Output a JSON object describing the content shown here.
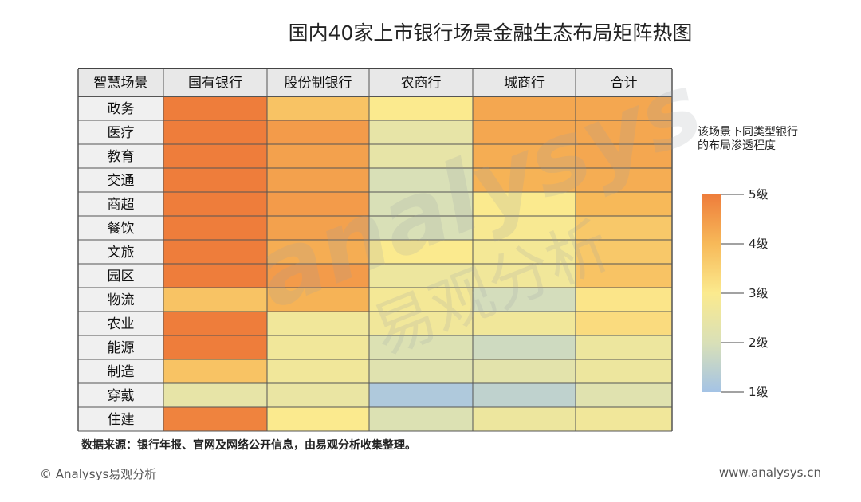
{
  "title": "国内40家上市银行场景金融生态布局矩阵热图",
  "source_note": "数据来源：银行年报、官网及网络公开信息，由易观分析收集整理。",
  "footer": {
    "copyright": "© Analysys易观分析",
    "website": "www.analysys.cn"
  },
  "legend": {
    "title": "该场景下同类型银行的布局渗透程度",
    "ticks": [
      "5级",
      "4级",
      "3级",
      "2级",
      "1级"
    ],
    "tick_values": [
      5,
      4,
      3,
      2,
      1
    ],
    "colors": [
      "#ee7d3b",
      "#f7b959",
      "#fbea8e",
      "#d9e0b7",
      "#a4c3e5"
    ]
  },
  "watermark": {
    "latin": "analysys",
    "chinese": "易观分析"
  },
  "chart_data": {
    "type": "heatmap",
    "title": "国内40家上市银行场景金融生态布局矩阵热图",
    "header_label": "智慧场景",
    "columns": [
      "国有银行",
      "股份制银行",
      "农商行",
      "城商行",
      "合计"
    ],
    "rows": [
      "政务",
      "医疗",
      "教育",
      "交通",
      "商超",
      "餐饮",
      "文旅",
      "园区",
      "物流",
      "农业",
      "能源",
      "制造",
      "穿戴",
      "住建"
    ],
    "scale": {
      "min": 1,
      "max": 5,
      "unit": "级"
    },
    "values": [
      [
        5.0,
        3.8,
        3.0,
        4.3,
        4.3
      ],
      [
        5.0,
        4.5,
        2.4,
        4.3,
        4.3
      ],
      [
        5.0,
        4.4,
        2.4,
        4.2,
        4.3
      ],
      [
        5.0,
        4.4,
        2.0,
        4.1,
        4.2
      ],
      [
        5.0,
        4.5,
        2.0,
        3.0,
        4.0
      ],
      [
        5.0,
        4.4,
        2.0,
        2.9,
        3.7
      ],
      [
        5.0,
        4.2,
        3.0,
        2.8,
        3.7
      ],
      [
        5.0,
        4.5,
        2.6,
        2.7,
        3.8
      ],
      [
        3.8,
        4.1,
        2.8,
        1.9,
        3.1
      ],
      [
        5.0,
        2.7,
        2.7,
        2.7,
        3.3
      ],
      [
        5.0,
        2.7,
        2.1,
        1.8,
        2.6
      ],
      [
        3.8,
        2.7,
        2.2,
        2.3,
        2.6
      ],
      [
        2.4,
        2.5,
        1.2,
        1.5,
        2.2
      ],
      [
        4.9,
        3.0,
        2.1,
        2.6,
        2.7
      ]
    ]
  }
}
